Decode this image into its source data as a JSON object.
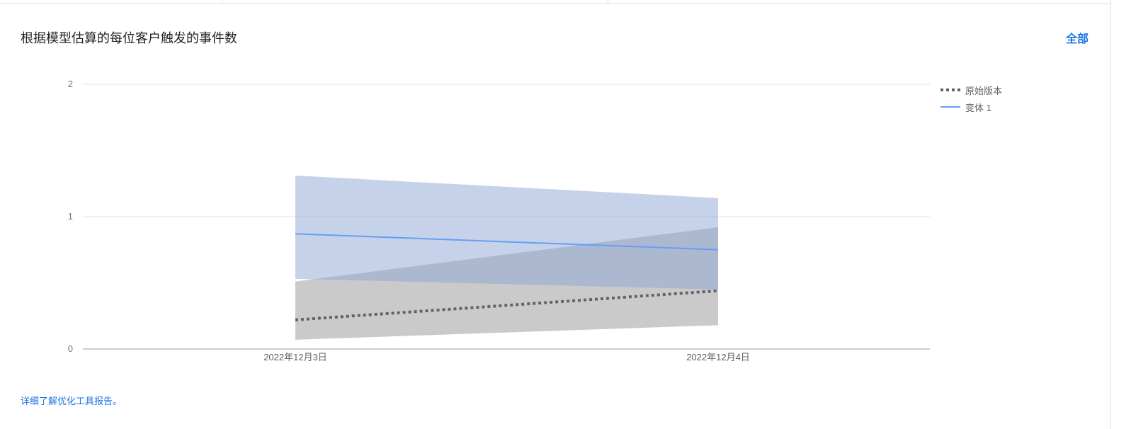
{
  "header": {
    "title": "根据模型估算的每位客户触发的事件数",
    "all_label": "全部"
  },
  "footer": {
    "learn_more": "详细了解优化工具报告。"
  },
  "chart_data": {
    "type": "line",
    "title": "根据模型估算的每位客户触发的事件数",
    "xlabel": "",
    "ylabel": "",
    "x": [
      "2022年12月3日",
      "2022年12月4日"
    ],
    "ylim": [
      0,
      2
    ],
    "yticks": [
      0,
      1,
      2
    ],
    "grid": true,
    "legend_position": "right",
    "series": [
      {
        "name": "原始版本",
        "style": "dotted",
        "color": "#5f6368",
        "band_color": "#9e9e9e",
        "values": [
          0.22,
          0.44
        ],
        "lower": [
          0.07,
          0.18
        ],
        "upper": [
          0.51,
          0.92
        ]
      },
      {
        "name": "变体 1",
        "style": "solid",
        "color": "#669df6",
        "band_color": "#8ea6d3",
        "values": [
          0.87,
          0.75
        ],
        "lower": [
          0.53,
          0.45
        ],
        "upper": [
          1.31,
          1.14
        ]
      }
    ]
  }
}
